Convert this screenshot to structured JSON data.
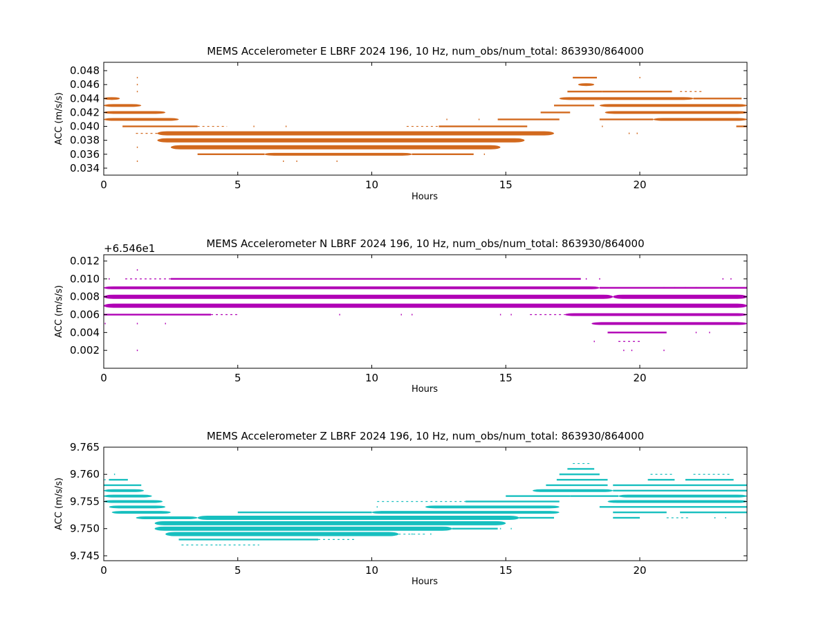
{
  "chart_data": [
    {
      "type": "scatter",
      "title": "MEMS Accelerometer E LBRF 2024 196, 10 Hz, num_obs/num_total: 863930/864000",
      "xlabel": "Hours",
      "ylabel": "ACC (m/s/s)",
      "xlim": [
        0,
        24
      ],
      "ylim": [
        0.033,
        0.0492
      ],
      "x_ticks": [
        0,
        5,
        10,
        15,
        20
      ],
      "y_ticks": [
        "0.034",
        "0.036",
        "0.038",
        "0.040",
        "0.042",
        "0.044",
        "0.046",
        "0.048"
      ],
      "offset_label": "",
      "color": "#D2691E",
      "series": [
        {
          "bands": [
            {
              "y": 0.047,
              "segments": [
                [
                  17.5,
                  18.4,
                  1
                ]
              ]
            },
            {
              "y": 0.046,
              "segments": [
                [
                  17.7,
                  18.3,
                  2
                ]
              ]
            },
            {
              "y": 0.045,
              "segments": [
                [
                  17.3,
                  18.6,
                  1
                ],
                [
                  18.6,
                  21.2,
                  1
                ],
                [
                  21.5,
                  22.3,
                  0
                ]
              ]
            },
            {
              "y": 0.044,
              "segments": [
                [
                  0,
                  0.6,
                  2
                ],
                [
                  17.0,
                  22.0,
                  2
                ],
                [
                  22.0,
                  23.8,
                  1
                ]
              ]
            },
            {
              "y": 0.043,
              "segments": [
                [
                  0,
                  1.4,
                  2
                ],
                [
                  16.8,
                  18.3,
                  1
                ],
                [
                  18.5,
                  24,
                  2
                ]
              ]
            },
            {
              "y": 0.042,
              "segments": [
                [
                  0,
                  2.3,
                  2
                ],
                [
                  16.3,
                  17.4,
                  1
                ],
                [
                  18.7,
                  24,
                  2
                ]
              ]
            },
            {
              "y": 0.041,
              "segments": [
                [
                  0,
                  2.8,
                  2
                ],
                [
                  14.7,
                  17.0,
                  1
                ],
                [
                  18.5,
                  20.5,
                  1
                ],
                [
                  20.5,
                  24,
                  2
                ]
              ]
            },
            {
              "y": 0.04,
              "segments": [
                [
                  0.7,
                  3.5,
                  1
                ],
                [
                  3.5,
                  4.6,
                  0
                ],
                [
                  11.3,
                  12.5,
                  0
                ],
                [
                  12.5,
                  15.8,
                  1
                ],
                [
                  23.6,
                  24,
                  1
                ]
              ]
            },
            {
              "y": 0.039,
              "segments": [
                [
                  1.2,
                  2.0,
                  0
                ],
                [
                  2.0,
                  16.8,
                  3
                ]
              ]
            },
            {
              "y": 0.038,
              "segments": [
                [
                  2.0,
                  15.7,
                  3
                ]
              ]
            },
            {
              "y": 0.037,
              "segments": [
                [
                  2.5,
                  14.8,
                  3
                ]
              ]
            },
            {
              "y": 0.036,
              "segments": [
                [
                  3.5,
                  6.0,
                  1
                ],
                [
                  6.0,
                  11.5,
                  2
                ],
                [
                  11.5,
                  13.8,
                  1
                ]
              ]
            }
          ],
          "scatter": [
            [
              1.25,
              0.047
            ],
            [
              1.25,
              0.046
            ],
            [
              1.25,
              0.045
            ],
            [
              1.25,
              0.037
            ],
            [
              1.25,
              0.035
            ],
            [
              5.6,
              0.04
            ],
            [
              6.8,
              0.04
            ],
            [
              7.2,
              0.035
            ],
            [
              6.7,
              0.035
            ],
            [
              8.7,
              0.035
            ],
            [
              12.8,
              0.041
            ],
            [
              14.0,
              0.041
            ],
            [
              14.2,
              0.036
            ],
            [
              18.6,
              0.04
            ],
            [
              19.6,
              0.039
            ],
            [
              19.9,
              0.039
            ],
            [
              20.0,
              0.047
            ]
          ]
        }
      ]
    },
    {
      "type": "scatter",
      "title": "MEMS Accelerometer N LBRF 2024 196, 10 Hz, num_obs/num_total: 863930/864000",
      "xlabel": "Hours",
      "ylabel": "ACC (m/s/s)",
      "xlim": [
        0,
        24
      ],
      "ylim": [
        0.0,
        0.0127
      ],
      "x_ticks": [
        0,
        5,
        10,
        15,
        20
      ],
      "y_ticks": [
        "0.002",
        "0.004",
        "0.006",
        "0.008",
        "0.010",
        "0.012"
      ],
      "offset_label": "+6.546e1",
      "color": "#B000B5",
      "series": [
        {
          "bands": [
            {
              "y": 0.01,
              "segments": [
                [
                  0.8,
                  2.5,
                  0
                ],
                [
                  2.5,
                  17.8,
                  1
                ]
              ]
            },
            {
              "y": 0.009,
              "segments": [
                [
                  0,
                  18.5,
                  2
                ],
                [
                  18.5,
                  24,
                  1
                ]
              ]
            },
            {
              "y": 0.008,
              "segments": [
                [
                  0,
                  19.0,
                  3
                ],
                [
                  19.0,
                  24,
                  3
                ]
              ]
            },
            {
              "y": 0.007,
              "segments": [
                [
                  0,
                  24,
                  3
                ]
              ]
            },
            {
              "y": 0.006,
              "segments": [
                [
                  0,
                  4.0,
                  1
                ],
                [
                  4.0,
                  5.0,
                  0
                ],
                [
                  15.9,
                  17.2,
                  0
                ],
                [
                  17.2,
                  24,
                  2
                ]
              ]
            },
            {
              "y": 0.005,
              "segments": [
                [
                  18.2,
                  24,
                  2
                ]
              ]
            },
            {
              "y": 0.004,
              "segments": [
                [
                  18.8,
                  21.0,
                  1
                ]
              ]
            },
            {
              "y": 0.003,
              "segments": [
                [
                  19.2,
                  20.0,
                  0
                ]
              ]
            }
          ],
          "scatter": [
            [
              1.25,
              0.011
            ],
            [
              1.25,
              0.005
            ],
            [
              1.25,
              0.002
            ],
            [
              2.3,
              0.005
            ],
            [
              0.05,
              0.005
            ],
            [
              0.2,
              0.01
            ],
            [
              8.8,
              0.006
            ],
            [
              11.1,
              0.006
            ],
            [
              11.5,
              0.006
            ],
            [
              14.8,
              0.006
            ],
            [
              15.2,
              0.006
            ],
            [
              18.3,
              0.003
            ],
            [
              19.4,
              0.002
            ],
            [
              19.7,
              0.002
            ],
            [
              20.9,
              0.002
            ],
            [
              18.0,
              0.01
            ],
            [
              18.5,
              0.01
            ],
            [
              20.9,
              0.009
            ],
            [
              21.3,
              0.009
            ],
            [
              21.7,
              0.009
            ],
            [
              22.1,
              0.009
            ],
            [
              22.6,
              0.004
            ],
            [
              22.1,
              0.004
            ],
            [
              23.1,
              0.01
            ],
            [
              23.4,
              0.01
            ]
          ]
        }
      ]
    },
    {
      "type": "scatter",
      "title": "MEMS Accelerometer Z LBRF 2024 196, 10 Hz, num_obs/num_total: 863930/864000",
      "xlabel": "Hours",
      "ylabel": "ACC (m/s/s)",
      "xlim": [
        0,
        24
      ],
      "ylim": [
        9.7441,
        9.765
      ],
      "x_ticks": [
        0,
        5,
        10,
        15,
        20
      ],
      "y_ticks": [
        "9.745",
        "9.750",
        "9.755",
        "9.760",
        "9.765"
      ],
      "offset_label": "",
      "color": "#17BFBF",
      "series": [
        {
          "bands": [
            {
              "y": 9.762,
              "segments": [
                [
                  17.5,
                  18.2,
                  0
                ]
              ]
            },
            {
              "y": 9.761,
              "segments": [
                [
                  17.3,
                  18.3,
                  1
                ]
              ]
            },
            {
              "y": 9.76,
              "segments": [
                [
                  17.0,
                  18.5,
                  1
                ],
                [
                  20.4,
                  21.2,
                  0
                ],
                [
                  22.0,
                  23.4,
                  0
                ]
              ]
            },
            {
              "y": 9.759,
              "segments": [
                [
                  0,
                  0.2,
                  0
                ],
                [
                  0.2,
                  0.9,
                  1
                ],
                [
                  16.9,
                  18.8,
                  1
                ],
                [
                  20.3,
                  21.3,
                  1
                ],
                [
                  21.7,
                  23.5,
                  1
                ]
              ]
            },
            {
              "y": 9.758,
              "segments": [
                [
                  0,
                  1.4,
                  1
                ],
                [
                  16.5,
                  18.8,
                  1
                ],
                [
                  19.0,
                  24,
                  1
                ]
              ]
            },
            {
              "y": 9.757,
              "segments": [
                [
                  0,
                  1.5,
                  2
                ],
                [
                  16.0,
                  19.0,
                  2
                ],
                [
                  19.0,
                  24,
                  1
                ]
              ]
            },
            {
              "y": 9.756,
              "segments": [
                [
                  0,
                  1.8,
                  2
                ],
                [
                  15.0,
                  17.4,
                  1
                ],
                [
                  17.4,
                  19.2,
                  1
                ],
                [
                  19.2,
                  24,
                  2
                ]
              ]
            },
            {
              "y": 9.755,
              "segments": [
                [
                  0,
                  2.2,
                  2
                ],
                [
                  10.2,
                  13.5,
                  0
                ],
                [
                  13.5,
                  17.0,
                  1
                ],
                [
                  18.8,
                  24,
                  2
                ]
              ]
            },
            {
              "y": 9.754,
              "segments": [
                [
                  0.2,
                  2.3,
                  2
                ],
                [
                  12.0,
                  17.0,
                  2
                ],
                [
                  18.5,
                  24,
                  1
                ]
              ]
            },
            {
              "y": 9.753,
              "segments": [
                [
                  0.3,
                  2.5,
                  2
                ],
                [
                  5.0,
                  10.0,
                  1
                ],
                [
                  10.0,
                  17.0,
                  2
                ],
                [
                  19.0,
                  21.0,
                  1
                ],
                [
                  21.5,
                  24,
                  1
                ]
              ]
            },
            {
              "y": 9.752,
              "segments": [
                [
                  1.2,
                  3.5,
                  2
                ],
                [
                  3.5,
                  15.5,
                  3
                ],
                [
                  15.5,
                  16.8,
                  1
                ],
                [
                  19.0,
                  20.0,
                  1
                ],
                [
                  21.0,
                  21.8,
                  0
                ]
              ]
            },
            {
              "y": 9.751,
              "segments": [
                [
                  1.9,
                  15.0,
                  3
                ]
              ]
            },
            {
              "y": 9.75,
              "segments": [
                [
                  1.9,
                  13.0,
                  3
                ],
                [
                  13.0,
                  14.7,
                  1
                ]
              ]
            },
            {
              "y": 9.749,
              "segments": [
                [
                  2.3,
                  11.0,
                  3
                ],
                [
                  11.0,
                  12.0,
                  0
                ]
              ]
            },
            {
              "y": 9.748,
              "segments": [
                [
                  2.8,
                  8.0,
                  1
                ],
                [
                  8.0,
                  9.4,
                  0
                ]
              ]
            },
            {
              "y": 9.747,
              "segments": [
                [
                  2.9,
                  4.3,
                  0
                ],
                [
                  4.3,
                  5.8,
                  0
                ]
              ]
            }
          ],
          "scatter": [
            [
              0.4,
              9.76
            ],
            [
              1.25,
              9.756
            ],
            [
              10.2,
              9.754
            ],
            [
              11.5,
              9.749
            ],
            [
              12.2,
              9.749
            ],
            [
              14.8,
              9.75
            ],
            [
              15.2,
              9.75
            ],
            [
              17.4,
              9.758
            ],
            [
              19.8,
              9.752
            ],
            [
              22.8,
              9.752
            ],
            [
              23.2,
              9.752
            ]
          ]
        }
      ]
    }
  ]
}
